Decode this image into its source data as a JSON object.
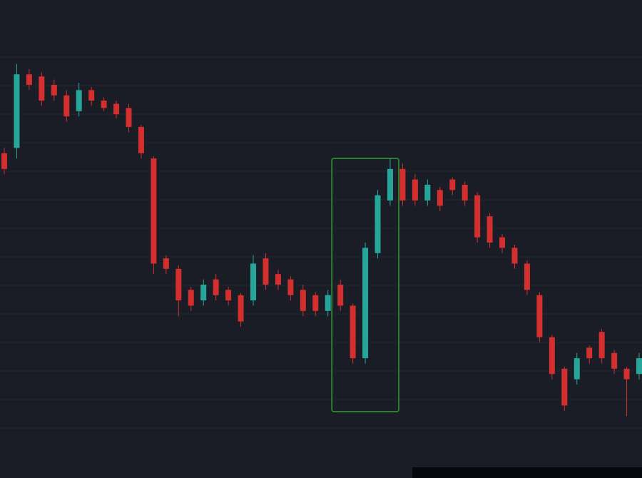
{
  "chart_data": {
    "type": "candlestick",
    "title": "",
    "xlabel": "",
    "ylabel": "",
    "ylim": [
      20,
      400
    ],
    "grid": false,
    "colors": {
      "up": "#26a69a",
      "down": "#d32f2f",
      "background": "#1a1d26",
      "highlight": "#2e7d32"
    },
    "highlight_range": [
      27,
      31
    ],
    "candles": [
      {
        "o": 295,
        "c": 280,
        "h": 300,
        "l": 275
      },
      {
        "o": 300,
        "c": 370,
        "h": 380,
        "l": 290
      },
      {
        "o": 370,
        "c": 360,
        "h": 375,
        "l": 355
      },
      {
        "o": 368,
        "c": 345,
        "h": 372,
        "l": 340
      },
      {
        "o": 360,
        "c": 350,
        "h": 365,
        "l": 345
      },
      {
        "o": 350,
        "c": 330,
        "h": 355,
        "l": 325
      },
      {
        "o": 335,
        "c": 355,
        "h": 362,
        "l": 330
      },
      {
        "o": 355,
        "c": 345,
        "h": 358,
        "l": 340
      },
      {
        "o": 345,
        "c": 338,
        "h": 348,
        "l": 335
      },
      {
        "o": 342,
        "c": 332,
        "h": 345,
        "l": 328
      },
      {
        "o": 338,
        "c": 320,
        "h": 342,
        "l": 315
      },
      {
        "o": 320,
        "c": 295,
        "h": 322,
        "l": 290
      },
      {
        "o": 290,
        "c": 190,
        "h": 292,
        "l": 180
      },
      {
        "o": 195,
        "c": 185,
        "h": 198,
        "l": 180
      },
      {
        "o": 185,
        "c": 155,
        "h": 188,
        "l": 140
      },
      {
        "o": 165,
        "c": 150,
        "h": 168,
        "l": 145
      },
      {
        "o": 155,
        "c": 170,
        "h": 175,
        "l": 150
      },
      {
        "o": 175,
        "c": 160,
        "h": 180,
        "l": 155
      },
      {
        "o": 165,
        "c": 155,
        "h": 168,
        "l": 150
      },
      {
        "o": 160,
        "c": 135,
        "h": 162,
        "l": 130
      },
      {
        "o": 155,
        "c": 190,
        "h": 198,
        "l": 150
      },
      {
        "o": 195,
        "c": 170,
        "h": 200,
        "l": 165
      },
      {
        "o": 180,
        "c": 170,
        "h": 184,
        "l": 165
      },
      {
        "o": 175,
        "c": 160,
        "h": 178,
        "l": 155
      },
      {
        "o": 165,
        "c": 145,
        "h": 170,
        "l": 140
      },
      {
        "o": 160,
        "c": 145,
        "h": 163,
        "l": 140
      },
      {
        "o": 145,
        "c": 160,
        "h": 165,
        "l": 140
      },
      {
        "o": 170,
        "c": 150,
        "h": 175,
        "l": 145
      },
      {
        "o": 150,
        "c": 100,
        "h": 152,
        "l": 95
      },
      {
        "o": 100,
        "c": 205,
        "h": 210,
        "l": 95
      },
      {
        "o": 200,
        "c": 255,
        "h": 260,
        "l": 195
      },
      {
        "o": 250,
        "c": 280,
        "h": 290,
        "l": 245
      },
      {
        "o": 280,
        "c": 250,
        "h": 285,
        "l": 245
      },
      {
        "o": 270,
        "c": 250,
        "h": 275,
        "l": 245
      },
      {
        "o": 250,
        "c": 265,
        "h": 270,
        "l": 245
      },
      {
        "o": 260,
        "c": 245,
        "h": 263,
        "l": 240
      },
      {
        "o": 270,
        "c": 260,
        "h": 272,
        "l": 255
      },
      {
        "o": 265,
        "c": 250,
        "h": 268,
        "l": 245
      },
      {
        "o": 255,
        "c": 215,
        "h": 258,
        "l": 210
      },
      {
        "o": 235,
        "c": 210,
        "h": 238,
        "l": 205
      },
      {
        "o": 215,
        "c": 205,
        "h": 218,
        "l": 200
      },
      {
        "o": 205,
        "c": 190,
        "h": 208,
        "l": 185
      },
      {
        "o": 190,
        "c": 165,
        "h": 193,
        "l": 160
      },
      {
        "o": 160,
        "c": 120,
        "h": 163,
        "l": 115
      },
      {
        "o": 120,
        "c": 85,
        "h": 122,
        "l": 80
      },
      {
        "o": 90,
        "c": 55,
        "h": 92,
        "l": 50
      },
      {
        "o": 80,
        "c": 100,
        "h": 105,
        "l": 75
      },
      {
        "o": 110,
        "c": 100,
        "h": 112,
        "l": 95
      },
      {
        "o": 125,
        "c": 100,
        "h": 128,
        "l": 95
      },
      {
        "o": 105,
        "c": 90,
        "h": 108,
        "l": 85
      },
      {
        "o": 90,
        "c": 80,
        "h": 92,
        "l": 45
      },
      {
        "o": 85,
        "c": 100,
        "h": 105,
        "l": 80
      }
    ]
  }
}
